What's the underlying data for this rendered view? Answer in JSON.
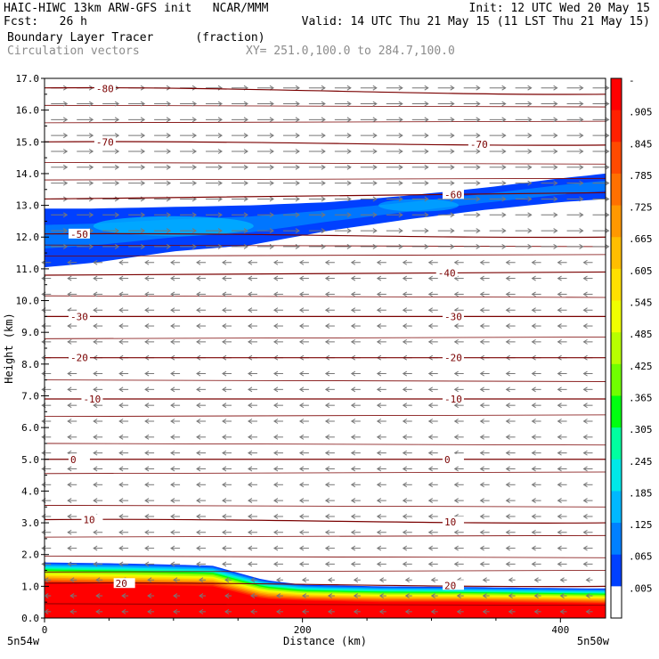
{
  "header": {
    "model_line": "HAIC-HIWC 13km ARW-GFS init   NCAR/MMM",
    "init_line": "Init: 12 UTC Wed 20 May 15",
    "fcst_line": "Fcst:   26 h",
    "valid_line": "Valid: 14 UTC Thu 21 May 15 (11 LST Thu 21 May 15)",
    "field_line": "Boundary Layer Tracer      (fraction)",
    "vector_line": "Circulation vectors",
    "xy_line": "XY= 251.0,100.0 to 284.7,100.0"
  },
  "chart_data": {
    "type": "heatmap",
    "title": "Boundary Layer Tracer",
    "units": "(fraction)",
    "xlabel": "Distance (km)",
    "ylabel": "Height (km)",
    "xlim": [
      0,
      435
    ],
    "ylim": [
      0,
      17
    ],
    "x_ticks": [
      0,
      200,
      400
    ],
    "y_ticks": [
      "0.0",
      "1.0",
      "2.0",
      "3.0",
      "4.0",
      "5.0",
      "6.0",
      "7.0",
      "8.0",
      "9.0",
      "10.0",
      "11.0",
      "12.0",
      "13.0",
      "14.0",
      "15.0",
      "16.0",
      "17.0"
    ],
    "x_end_labels": [
      "5n54w",
      "5n50w"
    ],
    "colorbar": {
      "labels": [
        "-",
        ".905",
        ".845",
        ".785",
        ".725",
        ".665",
        ".605",
        ".545",
        ".485",
        ".425",
        ".365",
        ".305",
        ".245",
        ".185",
        ".125",
        ".065",
        ".005"
      ],
      "colors": [
        "#ff0000",
        "#ff2000",
        "#ff4a00",
        "#ff7000",
        "#ff9800",
        "#ffbe00",
        "#ffe000",
        "#f0ff00",
        "#b8ff00",
        "#70ff00",
        "#00ff10",
        "#00ffa0",
        "#00e8e8",
        "#00b8ff",
        "#0080ff",
        "#0040ff",
        "#ffffff"
      ]
    },
    "temperature_contours": {
      "color": "#7a0000",
      "levels": [
        -80,
        -70,
        -60,
        -50,
        -40,
        -30,
        -20,
        -10,
        0,
        10,
        20
      ],
      "heights_left": [
        16.7,
        15.0,
        13.2,
        12.1,
        10.8,
        9.5,
        8.2,
        6.9,
        5.0,
        3.1,
        1.1
      ],
      "heights_right": [
        16.5,
        14.9,
        13.4,
        12.0,
        10.9,
        9.5,
        8.2,
        6.9,
        5.0,
        3.0,
        1.0
      ],
      "label_positions_left_x": [
        40,
        40,
        null,
        20,
        null,
        20,
        20,
        30,
        20,
        30,
        55
      ],
      "label_positions_right_x": [
        null,
        330,
        310,
        null,
        305,
        310,
        310,
        310,
        310,
        310,
        310
      ]
    },
    "extra_isolines_km": [
      0.45,
      1.45,
      1.95,
      2.55,
      3.55,
      4.55,
      5.5,
      6.35,
      7.5,
      8.8,
      10.15,
      11.4,
      11.75,
      13.8,
      14.35,
      15.6,
      16.15
    ],
    "tracer_layers": [
      {
        "name": "boundary_layer_top",
        "fraction": 0.05,
        "x": [
          0,
          60,
          130,
          170,
          200,
          260,
          320,
          380,
          435
        ],
        "y_top": [
          1.75,
          1.72,
          1.65,
          1.2,
          1.05,
          1.0,
          0.98,
          0.95,
          0.93
        ]
      },
      {
        "name": "boundary_layer_core",
        "fraction": 0.9,
        "x": [
          0,
          60,
          130,
          170,
          200,
          260,
          320,
          380,
          435
        ],
        "y_top": [
          1.1,
          1.05,
          1.0,
          0.6,
          0.55,
          0.5,
          0.5,
          0.48,
          0.45
        ]
      },
      {
        "name": "upper_tracer_band_bottom",
        "fraction": 0.1,
        "x": [
          0,
          40,
          100,
          160,
          220,
          280,
          340,
          400,
          435
        ],
        "y": [
          11.05,
          11.2,
          11.55,
          11.75,
          12.2,
          12.55,
          12.85,
          13.1,
          13.2
        ]
      },
      {
        "name": "upper_tracer_band_top",
        "fraction": 0.1,
        "x": [
          0,
          40,
          100,
          160,
          220,
          280,
          340,
          400,
          435
        ],
        "y": [
          12.9,
          12.9,
          12.95,
          13.0,
          13.1,
          13.3,
          13.55,
          13.85,
          14.0
        ]
      }
    ],
    "vectors": {
      "color": "#777777",
      "upper_direction": "east",
      "lower_direction": "west",
      "reversal_height_km": 11.5
    }
  }
}
